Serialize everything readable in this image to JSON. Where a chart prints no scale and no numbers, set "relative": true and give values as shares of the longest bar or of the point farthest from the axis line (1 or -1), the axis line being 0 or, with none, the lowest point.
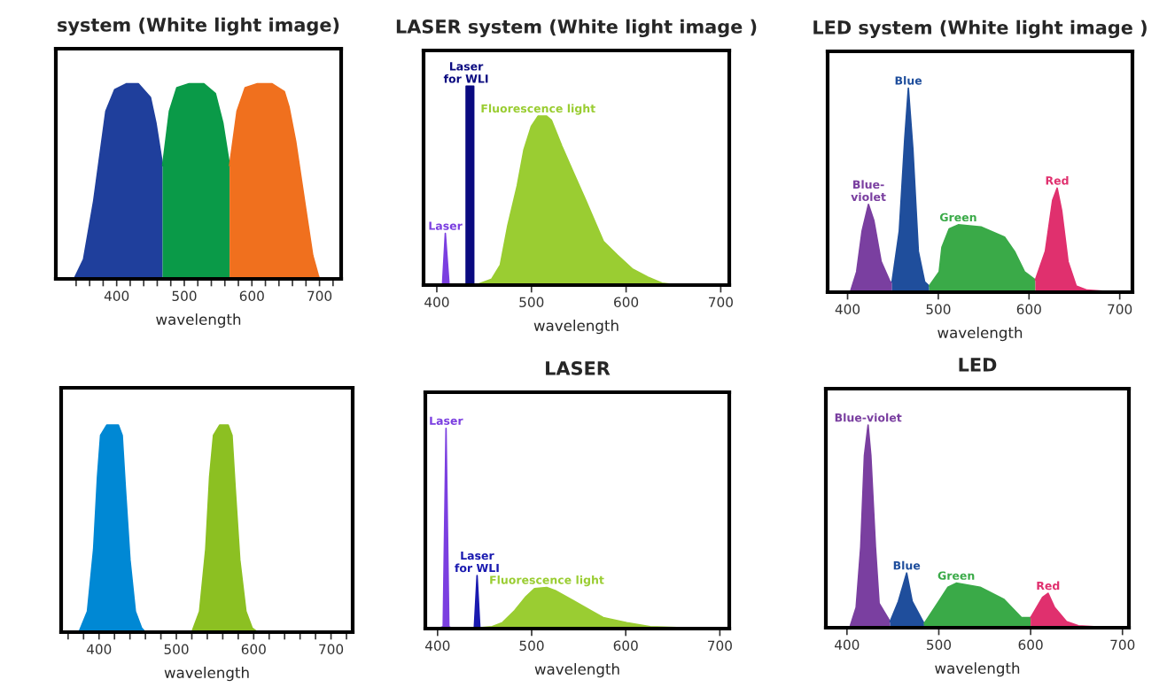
{
  "chart_data": [
    {
      "type": "area",
      "title": "system (White light image)",
      "xlabel": "wavelength",
      "relative": true,
      "grid": false,
      "xlim": [
        310,
        732
      ],
      "xticks": [
        {
          "value": 340,
          "label": null
        },
        {
          "value": 360,
          "label": null
        },
        {
          "value": 380,
          "label": null
        },
        400,
        {
          "value": 420,
          "label": null
        },
        {
          "value": 440,
          "label": null
        },
        {
          "value": 460,
          "label": null
        },
        {
          "value": 480,
          "label": null
        },
        500,
        {
          "value": 520,
          "label": null
        },
        {
          "value": 540,
          "label": null
        },
        {
          "value": 560,
          "label": null
        },
        {
          "value": 580,
          "label": null
        },
        600,
        {
          "value": 620,
          "label": null
        },
        {
          "value": 640,
          "label": null
        },
        {
          "value": 660,
          "label": null
        },
        {
          "value": 680,
          "label": null
        },
        700,
        {
          "value": 720,
          "label": null
        }
      ],
      "series": [
        {
          "color": "#1f3f9c",
          "x": [
            337,
            351,
            366,
            384,
            397,
            414,
            432,
            450,
            458,
            468
          ],
          "values": [
            0,
            0.1,
            0.4,
            0.86,
            0.97,
            1,
            1,
            0.93,
            0.8,
            0.58
          ]
        },
        {
          "color": "#0a9a48",
          "x": [
            468,
            478,
            489,
            507,
            529,
            546,
            557,
            567
          ],
          "values": [
            0.58,
            0.86,
            0.98,
            1,
            1,
            0.95,
            0.8,
            0.58
          ]
        },
        {
          "color": "#f0701e",
          "x": [
            567,
            578,
            590,
            608,
            630,
            648,
            655,
            665,
            680,
            690,
            698,
            700
          ],
          "values": [
            0.58,
            0.86,
            0.98,
            1,
            1,
            0.96,
            0.88,
            0.7,
            0.35,
            0.12,
            0.02,
            0
          ]
        }
      ]
    },
    {
      "type": "area",
      "title": "LASER system (White light image )",
      "xlabel": "wavelength",
      "relative": true,
      "grid": false,
      "xlim": [
        386,
        709
      ],
      "xticks": [
        400,
        500,
        600,
        700
      ],
      "series": [
        {
          "name": "Laser",
          "color": "#7b3fe0",
          "x": [
            406,
            409,
            413
          ],
          "values": [
            0,
            0.26,
            0
          ]
        },
        {
          "name": "Laser\nfor WLI",
          "color": "#0a0a80",
          "x": [
            431,
            431,
            439,
            439
          ],
          "values": [
            0,
            1,
            1,
            0
          ]
        },
        {
          "name": "Fluorescence light",
          "color": "#9acd32",
          "x": [
            441,
            458,
            467,
            475,
            485,
            492,
            500,
            507,
            516,
            521,
            532,
            544,
            557,
            576,
            591,
            607,
            623,
            638,
            655
          ],
          "values": [
            0,
            0.03,
            0.1,
            0.3,
            0.5,
            0.68,
            0.8,
            0.85,
            0.85,
            0.83,
            0.7,
            0.57,
            0.43,
            0.22,
            0.15,
            0.08,
            0.04,
            0.01,
            0
          ]
        }
      ]
    },
    {
      "type": "area",
      "title": "LED system (White light image )",
      "xlabel": "wavelength",
      "relative": true,
      "grid": false,
      "xlim": [
        378,
        714
      ],
      "xticks": [
        400,
        500,
        600,
        700
      ],
      "series": [
        {
          "name": "Blue-\nviolet",
          "color": "#7a3fa0",
          "x": [
            403,
            410,
            416,
            423,
            429,
            437,
            447,
            449
          ],
          "values": [
            0,
            0.1,
            0.3,
            0.43,
            0.35,
            0.15,
            0.05,
            0.05
          ]
        },
        {
          "name": "Blue",
          "color": "#1f4e9c",
          "x": [
            449,
            457,
            463,
            467,
            472,
            478,
            485,
            490
          ],
          "values": [
            0.05,
            0.3,
            0.75,
            1,
            0.7,
            0.2,
            0.05,
            0.03
          ]
        },
        {
          "name": "Green",
          "color": "#3aaa48",
          "x": [
            490,
            501,
            504,
            512,
            522,
            547,
            573,
            584,
            595,
            607
          ],
          "values": [
            0.03,
            0.1,
            0.22,
            0.31,
            0.33,
            0.32,
            0.27,
            0.2,
            0.1,
            0.06
          ]
        },
        {
          "name": "Red",
          "color": "#e0306e",
          "x": [
            607,
            618,
            626,
            631,
            636,
            643,
            652,
            664,
            698
          ],
          "values": [
            0.06,
            0.2,
            0.45,
            0.51,
            0.4,
            0.15,
            0.03,
            0.01,
            0
          ]
        }
      ]
    },
    {
      "type": "area",
      "xlabel": "wavelength",
      "relative": true,
      "grid": false,
      "xlim": [
        351,
        728
      ],
      "xticks": [
        {
          "value": 360,
          "label": null
        },
        {
          "value": 380,
          "label": null
        },
        400,
        {
          "value": 420,
          "label": null
        },
        {
          "value": 440,
          "label": null
        },
        {
          "value": 460,
          "label": null
        },
        {
          "value": 480,
          "label": null
        },
        500,
        {
          "value": 520,
          "label": null
        },
        {
          "value": 540,
          "label": null
        },
        {
          "value": 560,
          "label": null
        },
        {
          "value": 580,
          "label": null
        },
        600,
        {
          "value": 620,
          "label": null
        },
        {
          "value": 640,
          "label": null
        },
        {
          "value": 660,
          "label": null
        },
        {
          "value": 680,
          "label": null
        },
        700,
        {
          "value": 720,
          "label": null
        }
      ],
      "series": [
        {
          "color": "#0088d4",
          "x": [
            374,
            385,
            393,
            398,
            402,
            410,
            425,
            430,
            434,
            440,
            447,
            455,
            460
          ],
          "values": [
            0,
            0.1,
            0.4,
            0.75,
            0.95,
            1,
            1,
            0.95,
            0.7,
            0.35,
            0.1,
            0.02,
            0
          ]
        },
        {
          "color": "#8cc022",
          "x": [
            520,
            530,
            538,
            543,
            548,
            556,
            567,
            572,
            576,
            582,
            590,
            598,
            605
          ],
          "values": [
            0,
            0.1,
            0.4,
            0.75,
            0.95,
            1,
            1,
            0.95,
            0.7,
            0.35,
            0.1,
            0.02,
            0
          ]
        }
      ]
    },
    {
      "type": "area",
      "title": "LASER",
      "xlabel": "wavelength",
      "relative": true,
      "grid": false,
      "xlim": [
        387,
        710
      ],
      "xticks": [
        400,
        500,
        600,
        700
      ],
      "series": [
        {
          "name": "Laser",
          "color": "#7b3fe0",
          "x": [
            400,
            406,
            409,
            412,
            416
          ],
          "values": [
            0,
            0.01,
            1,
            0.01,
            0
          ]
        },
        {
          "name": "Laser\nfor WLI",
          "color": "#1a1ab0",
          "x": [
            439,
            442,
            445
          ],
          "values": [
            0,
            0.265,
            0
          ]
        },
        {
          "name": "Fluorescence light",
          "color": "#9acd32",
          "x": [
            447,
            458,
            469,
            482,
            494,
            503,
            516,
            525,
            544,
            563,
            576,
            601,
            626,
            655
          ],
          "values": [
            0.005,
            0.01,
            0.03,
            0.09,
            0.16,
            0.2,
            0.205,
            0.19,
            0.14,
            0.09,
            0.055,
            0.03,
            0.01,
            0.005
          ]
        }
      ]
    },
    {
      "type": "area",
      "title": "LED",
      "xlabel": "wavelength",
      "relative": true,
      "grid": false,
      "xlim": [
        377,
        707
      ],
      "xticks": [
        400,
        500,
        600,
        700
      ],
      "series": [
        {
          "name": "Blue-violet",
          "color": "#7a3fa0",
          "x": [
            403,
            410,
            415,
            419,
            423,
            426,
            431,
            435,
            447
          ],
          "values": [
            0,
            0.1,
            0.4,
            0.85,
            1,
            0.85,
            0.4,
            0.12,
            0.03
          ]
        },
        {
          "name": "Blue",
          "color": "#1f4e9c",
          "x": [
            447,
            456,
            465,
            471,
            484
          ],
          "values": [
            0.03,
            0.13,
            0.27,
            0.13,
            0.02
          ]
        },
        {
          "name": "Green",
          "color": "#3aaa48",
          "x": [
            484,
            500,
            510,
            519,
            545,
            571,
            590,
            600
          ],
          "values": [
            0.02,
            0.13,
            0.2,
            0.22,
            0.2,
            0.14,
            0.05,
            0.05
          ]
        },
        {
          "name": "Red",
          "color": "#e0306e",
          "x": [
            600,
            613,
            619,
            626,
            639,
            652,
            690
          ],
          "values": [
            0.05,
            0.15,
            0.17,
            0.1,
            0.03,
            0.01,
            0
          ]
        }
      ]
    }
  ]
}
